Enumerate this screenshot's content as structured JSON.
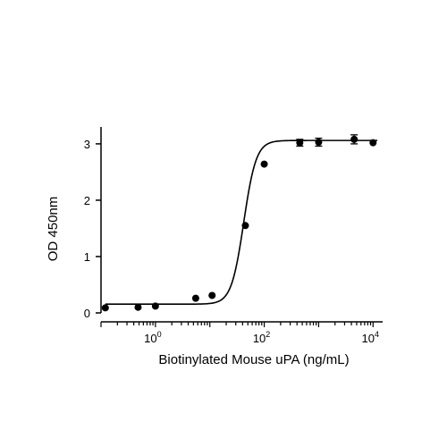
{
  "chart_data": {
    "type": "scatter",
    "title": "",
    "xlabel": "Biotinylated Mouse uPA (ng/mL)",
    "ylabel": "OD 450nm",
    "x_scale": "log",
    "xlim": [
      0.1,
      15000
    ],
    "ylim": [
      0,
      3.3
    ],
    "x_ticks": [
      {
        "value": 1,
        "base": "10",
        "exp": "0"
      },
      {
        "value": 100,
        "base": "10",
        "exp": "2"
      },
      {
        "value": 10000,
        "base": "10",
        "exp": "4"
      }
    ],
    "y_ticks": [
      {
        "value": 0,
        "label": "0"
      },
      {
        "value": 1,
        "label": "1"
      },
      {
        "value": 2,
        "label": "2"
      },
      {
        "value": 3,
        "label": "3"
      }
    ],
    "series": [
      {
        "points": [
          {
            "x": 0.12,
            "y": 0.09
          },
          {
            "x": 0.48,
            "y": 0.1
          },
          {
            "x": 1.0,
            "y": 0.12
          },
          {
            "x": 5.5,
            "y": 0.26
          },
          {
            "x": 11,
            "y": 0.31
          },
          {
            "x": 45,
            "y": 1.55
          },
          {
            "x": 100,
            "y": 2.64
          },
          {
            "x": 450,
            "y": 3.02,
            "err": 0.06
          },
          {
            "x": 1000,
            "y": 3.03,
            "err": 0.07
          },
          {
            "x": 4500,
            "y": 3.08,
            "err": 0.08
          },
          {
            "x": 10000,
            "y": 3.02
          }
        ],
        "fit": {
          "model": "4PL",
          "bottom": 0.155,
          "top": 3.06,
          "ec50": 42,
          "hill": 3.8
        },
        "color": "#000000"
      }
    ],
    "grid": false,
    "legend": "none"
  }
}
